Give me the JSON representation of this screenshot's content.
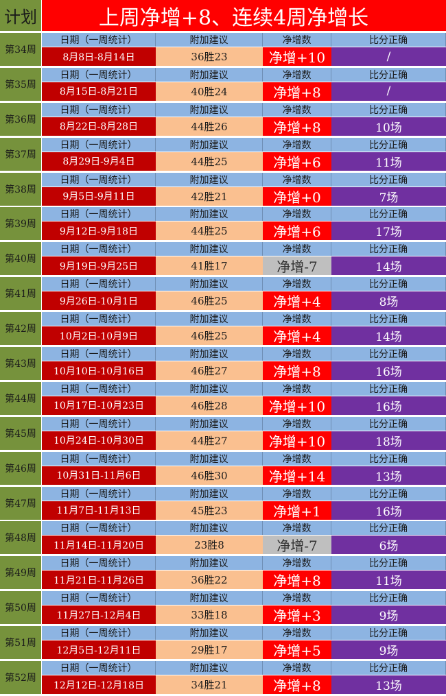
{
  "header": {
    "plan": "计划",
    "title": "上周净增+8、连续4周净增长"
  },
  "columns": {
    "date": "日期（一周统计）",
    "suggestion": "附加建议",
    "net": "净增数",
    "score": "比分正确"
  },
  "colors": {
    "olive": "#76923c",
    "title_red": "#ff0000",
    "date_red": "#c00000",
    "peach": "#fac090",
    "net_positive": "#ff0000",
    "net_negative": "#bfbfbf",
    "purple": "#7030a0",
    "header_blue": "#8db4e2"
  },
  "weeks": [
    {
      "week": "第34周",
      "date": "8月8日-8月14日",
      "suggestion": "36胜23",
      "net": "净增+10",
      "score": "/"
    },
    {
      "week": "第35周",
      "date": "8月15日-8月21日",
      "suggestion": "40胜24",
      "net": "净增+8",
      "score": "/"
    },
    {
      "week": "第36周",
      "date": "8月22日-8月28日",
      "suggestion": "44胜26",
      "net": "净增+8",
      "score": "10场"
    },
    {
      "week": "第37周",
      "date": "8月29日-9月4日",
      "suggestion": "44胜25",
      "net": "净增+6",
      "score": "11场"
    },
    {
      "week": "第38周",
      "date": "9月5日-9月11日",
      "suggestion": "42胜21",
      "net": "净增+0",
      "score": "7场"
    },
    {
      "week": "第39周",
      "date": "9月12日-9月18日",
      "suggestion": "44胜25",
      "net": "净增+6",
      "score": "17场"
    },
    {
      "week": "第40周",
      "date": "9月19日-9月25日",
      "suggestion": "41胜17",
      "net": "净增-7",
      "score": "14场"
    },
    {
      "week": "第41周",
      "date": "9月26日-10月1日",
      "suggestion": "46胜25",
      "net": "净增+4",
      "score": "8场"
    },
    {
      "week": "第42周",
      "date": "10月2日-10月9日",
      "suggestion": "46胜25",
      "net": "净增+4",
      "score": "14场"
    },
    {
      "week": "第43周",
      "date": "10月10日-10月16日",
      "suggestion": "46胜27",
      "net": "净增+8",
      "score": "16场"
    },
    {
      "week": "第44周",
      "date": "10月17日-10月23日",
      "suggestion": "46胜28",
      "net": "净增+10",
      "score": "16场"
    },
    {
      "week": "第45周",
      "date": "10月24日-10月30日",
      "suggestion": "44胜27",
      "net": "净增+10",
      "score": "18场"
    },
    {
      "week": "第46周",
      "date": "10月31日-11月6日",
      "suggestion": "46胜30",
      "net": "净增+14",
      "score": "13场"
    },
    {
      "week": "第47周",
      "date": "11月7日-11月13日",
      "suggestion": "45胜23",
      "net": "净增+1",
      "score": "16场"
    },
    {
      "week": "第48周",
      "date": "11月14日-11月20日",
      "suggestion": "23胜8",
      "net": "净增-7",
      "score": "6场"
    },
    {
      "week": "第49周",
      "date": "11月21日-11月26日",
      "suggestion": "36胜22",
      "net": "净增+8",
      "score": "11场"
    },
    {
      "week": "第50周",
      "date": "11月27日-12月4日",
      "suggestion": "33胜18",
      "net": "净增+3",
      "score": "9场"
    },
    {
      "week": "第51周",
      "date": "12月5日-12月11日",
      "suggestion": "29胜17",
      "net": "净增+5",
      "score": "9场"
    },
    {
      "week": "第52周",
      "date": "12月12日-12月18日",
      "suggestion": "34胜21",
      "net": "净增+8",
      "score": "13场"
    }
  ]
}
